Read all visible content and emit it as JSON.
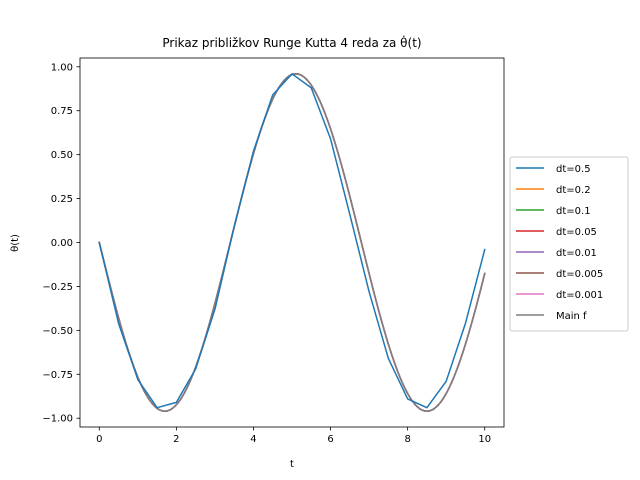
{
  "chart_data": {
    "type": "line",
    "title": "Prikaz približkov Runge Kutta 4 reda za θ̇(t)",
    "xlabel": "t",
    "ylabel": "θ(t)",
    "xlim": [
      -0.5,
      10.5
    ],
    "ylim": [
      -1.05,
      1.05
    ],
    "xticks": [
      0,
      2,
      4,
      6,
      8,
      10
    ],
    "yticks": [
      1.0,
      0.75,
      0.5,
      0.25,
      0.0,
      -0.25,
      -0.5,
      -0.75,
      -1.0
    ],
    "xtick_labels": [
      "0",
      "2",
      "4",
      "6",
      "8",
      "10"
    ],
    "ytick_labels": [
      "1.00",
      "0.75",
      "0.50",
      "0.25",
      "0.00",
      "−0.25",
      "−0.50",
      "−0.75",
      "−1.00"
    ],
    "grid": false,
    "legend_position": "right, outside plot",
    "series": [
      {
        "name": "dt=0.5",
        "color": "#1f77b4",
        "x": [
          0,
          0.5,
          1.0,
          1.5,
          2.0,
          2.5,
          3.0,
          3.5,
          4.0,
          4.5,
          5.0,
          5.5,
          6.0,
          6.5,
          7.0,
          7.5,
          8.0,
          8.5,
          9.0,
          9.5,
          10.0
        ],
        "y": [
          0.0,
          -0.46,
          -0.78,
          -0.94,
          -0.91,
          -0.72,
          -0.38,
          0.09,
          0.52,
          0.84,
          0.96,
          0.88,
          0.59,
          0.16,
          -0.28,
          -0.66,
          -0.89,
          -0.94,
          -0.79,
          -0.46,
          -0.04
        ]
      },
      {
        "name": "dt=0.2",
        "color": "#ff7f0e",
        "x": [],
        "y": []
      },
      {
        "name": "dt=0.1",
        "color": "#2ca02c",
        "x": [],
        "y": []
      },
      {
        "name": "dt=0.05",
        "color": "#d62728",
        "x": [],
        "y": []
      },
      {
        "name": "dt=0.01",
        "color": "#9467bd",
        "x": [],
        "y": []
      },
      {
        "name": "dt=0.005",
        "color": "#8c564b",
        "x": [],
        "y": []
      },
      {
        "name": "dt=0.001",
        "color": "#e377c2",
        "x": [],
        "y": []
      },
      {
        "name": "Main f",
        "color": "#7f7f7f",
        "x": [],
        "y": []
      }
    ],
    "main_function": {
      "amplitude": 0.96,
      "period": 6.8,
      "phase_shift": 0.0
    }
  }
}
